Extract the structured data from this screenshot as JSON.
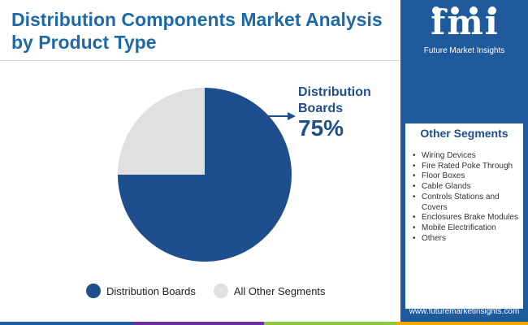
{
  "title": "Distribution Components Market Analysis by Product Type",
  "colors": {
    "primary": "#1f4e8c",
    "secondary": "#e0e0e0",
    "accent": "#1e6aa8",
    "bar": [
      "#1e5a9c",
      "#6a2fa0",
      "#8dc63f",
      "#f2a900"
    ]
  },
  "callout": {
    "label": "Distribution Boards",
    "value": "75%"
  },
  "chart_data": {
    "type": "pie",
    "title": "",
    "labels": [
      "Distribution Boards",
      "All Other Segments"
    ],
    "values": [
      75,
      25
    ],
    "colors": [
      "#1f4e8c",
      "#e0e0e0"
    ],
    "legend_position": "bottom"
  },
  "legend": [
    {
      "label": "Distribution Boards",
      "color": "#1f4e8c"
    },
    {
      "label": "All Other Segments",
      "color": "#e0e0e0"
    }
  ],
  "sidebar": {
    "logo": {
      "text": "fmi",
      "subtitle": "Future Market Insights"
    },
    "other_segments": {
      "header": "Other Segments",
      "items": [
        "Wiring Devices",
        "Fire Rated Poke Through",
        "Floor Boxes",
        "Cable Glands",
        "Controls Stations and Covers",
        "Enclosures Brake Modules",
        "Mobile Electrification",
        "Others"
      ]
    },
    "website": "www.futuremarketinsights.com"
  }
}
